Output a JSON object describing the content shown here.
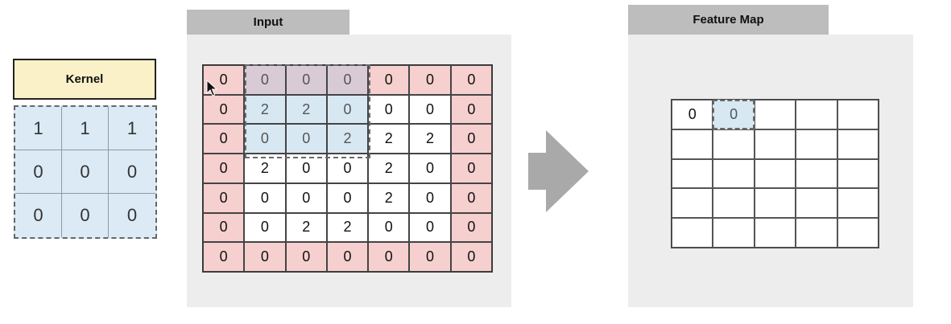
{
  "kernel": {
    "title": "Kernel",
    "values": [
      [
        "1",
        "1",
        "1"
      ],
      [
        "0",
        "0",
        "0"
      ],
      [
        "0",
        "0",
        "0"
      ]
    ]
  },
  "input": {
    "title": "Input",
    "values": [
      [
        "0",
        "0",
        "0",
        "0",
        "0",
        "0",
        "0"
      ],
      [
        "0",
        "2",
        "2",
        "0",
        "0",
        "0",
        "0"
      ],
      [
        "0",
        "0",
        "0",
        "2",
        "2",
        "2",
        "0"
      ],
      [
        "0",
        "2",
        "0",
        "0",
        "2",
        "0",
        "0"
      ],
      [
        "0",
        "0",
        "0",
        "0",
        "2",
        "0",
        "0"
      ],
      [
        "0",
        "0",
        "2",
        "2",
        "0",
        "0",
        "0"
      ],
      [
        "0",
        "0",
        "0",
        "0",
        "0",
        "0",
        "0"
      ]
    ],
    "kernel_window": {
      "row": 0,
      "col": 1,
      "size": 3
    }
  },
  "feature_map": {
    "title": "Feature Map",
    "rows": 5,
    "cols": 5,
    "values": [
      [
        "0",
        "0",
        "",
        "",
        ""
      ],
      [
        "",
        "",
        "",
        "",
        ""
      ],
      [
        "",
        "",
        "",
        "",
        ""
      ],
      [
        "",
        "",
        "",
        "",
        ""
      ],
      [
        "",
        "",
        "",
        "",
        ""
      ]
    ],
    "current_cell": {
      "row": 0,
      "col": 1
    }
  },
  "colors": {
    "kernel_title_bg": "#fbf1c8",
    "kernel_bg": "#dbeaf4",
    "padding_cell": "#f6cfcf",
    "window_cell": "#d7e8f3",
    "window_padding_cell": "#d8cbd6",
    "panel_bg": "#ededed",
    "tab_bg": "#bdbdbd",
    "arrow": "#a9a9a9"
  },
  "icons": {
    "cursor": "cursor-icon",
    "arrow": "arrow-right-icon"
  }
}
